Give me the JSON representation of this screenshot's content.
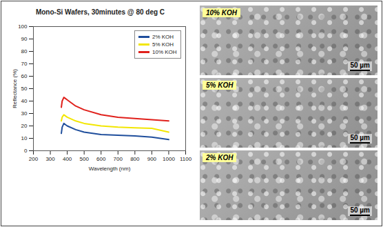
{
  "chart_data": {
    "type": "line",
    "title": "Mono-Si Wafers, 30minutes @ 80 deg C",
    "x_label": "Wavelength (nm)",
    "y_label": "Reflectance (%)",
    "x": [
      365,
      370,
      380,
      390,
      400,
      450,
      500,
      600,
      700,
      800,
      900,
      1000
    ],
    "series": [
      {
        "name": "2% KOH",
        "color": "#1f4e9c",
        "values": [
          14,
          19,
          22,
          21,
          20,
          17,
          15,
          13,
          12.5,
          12,
          11,
          9
        ]
      },
      {
        "name": "5% KOH",
        "color": "#f2e600",
        "values": [
          24,
          27,
          29,
          28,
          27,
          24,
          22,
          20,
          19,
          18.5,
          18,
          15
        ]
      },
      {
        "name": "10% KOH",
        "color": "#e0201b",
        "values": [
          35,
          40,
          43,
          42,
          41,
          36,
          33,
          29,
          27,
          26,
          25,
          24
        ]
      }
    ],
    "xlim": [
      200,
      1100
    ],
    "xticks": [
      200,
      300,
      400,
      500,
      600,
      700,
      800,
      900,
      1000,
      1100
    ],
    "ylim": [
      0,
      100
    ],
    "yticks": [
      0,
      10,
      20,
      30,
      40,
      50,
      60,
      70,
      80,
      90,
      100
    ],
    "grid": false,
    "legend": "top-right",
    "line_style": "solid",
    "marker": "none"
  },
  "panels": [
    {
      "label": "10% KOH",
      "scale_bar": "50 µm"
    },
    {
      "label": "5% KOH",
      "scale_bar": "50 µm"
    },
    {
      "label": "2% KOH",
      "scale_bar": "50 µm"
    }
  ]
}
